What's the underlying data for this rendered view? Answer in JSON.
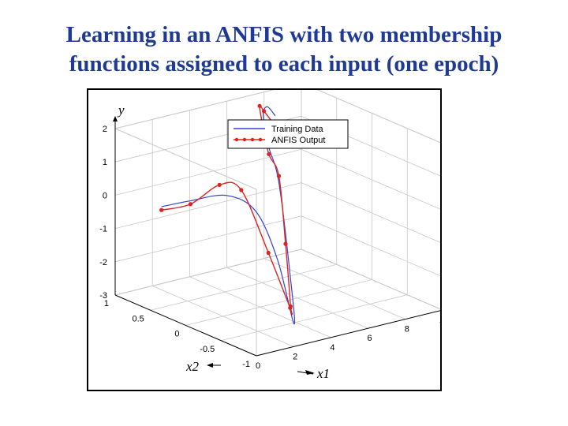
{
  "slide": {
    "title_line1": "Learning in an ANFIS with two membership",
    "title_line2": "functions assigned to each input (one epoch)"
  },
  "chart_data": {
    "type": "line",
    "projection": "3d",
    "xlabel": "x1",
    "ylabel": "x2",
    "zlabel": "y",
    "xlim": [
      0,
      10
    ],
    "ylim": [
      -1,
      1
    ],
    "zlim": [
      -3,
      2
    ],
    "xticks": [
      "0",
      "2",
      "4",
      "6",
      "8",
      "10"
    ],
    "yticks": [
      "-1",
      "-0.5",
      "0",
      "0.5",
      "1"
    ],
    "zticks": [
      "-3",
      "-2",
      "-1",
      "0",
      "1",
      "2"
    ],
    "grid": true,
    "legend": {
      "position": "top-center"
    },
    "series": [
      {
        "name": "Training Data",
        "color": "#3344cc",
        "marker": "none",
        "points": [
          {
            "x": 0.4,
            "y": 0.45,
            "z": 0.1
          },
          {
            "x": 1.2,
            "y": 0.25,
            "z": 0.35
          },
          {
            "x": 2.2,
            "y": 0.0,
            "z": 0.6
          },
          {
            "x": 3.0,
            "y": -0.2,
            "z": 0.2
          },
          {
            "x": 3.6,
            "y": -0.35,
            "z": -1.2
          },
          {
            "x": 4.1,
            "y": -0.45,
            "z": -3.1
          },
          {
            "x": 4.5,
            "y": -0.3,
            "z": -2.0
          },
          {
            "x": 5.0,
            "y": 0.0,
            "z": 0.6
          },
          {
            "x": 5.6,
            "y": 0.3,
            "z": 1.3
          },
          {
            "x": 6.5,
            "y": 0.6,
            "z": 1.6
          },
          {
            "x": 7.2,
            "y": 0.8,
            "z": 1.7
          },
          {
            "x": 8.0,
            "y": 0.95,
            "z": 1.6
          },
          {
            "x": 8.6,
            "y": 1.0,
            "z": 1.2
          }
        ]
      },
      {
        "name": "ANFIS Output",
        "color": "#dd2222",
        "marker": "dot",
        "points": [
          {
            "x": 0.4,
            "y": 0.45,
            "z": 0.0
          },
          {
            "x": 1.2,
            "y": 0.25,
            "z": 0.25
          },
          {
            "x": 2.0,
            "y": 0.05,
            "z": 0.9
          },
          {
            "x": 2.6,
            "y": -0.1,
            "z": 0.8
          },
          {
            "x": 3.3,
            "y": -0.3,
            "z": -1.0
          },
          {
            "x": 3.9,
            "y": -0.45,
            "z": -2.6
          },
          {
            "x": 4.3,
            "y": -0.35,
            "z": -2.7
          },
          {
            "x": 4.6,
            "y": -0.2,
            "z": -1.0
          },
          {
            "x": 5.0,
            "y": 0.0,
            "z": 0.8
          },
          {
            "x": 5.6,
            "y": 0.3,
            "z": 1.1
          },
          {
            "x": 6.4,
            "y": 0.6,
            "z": 1.6
          },
          {
            "x": 7.0,
            "y": 0.8,
            "z": 1.9
          },
          {
            "x": 7.8,
            "y": 0.95,
            "z": 1.5
          },
          {
            "x": 8.6,
            "y": 1.0,
            "z": 0.9
          }
        ]
      }
    ]
  }
}
